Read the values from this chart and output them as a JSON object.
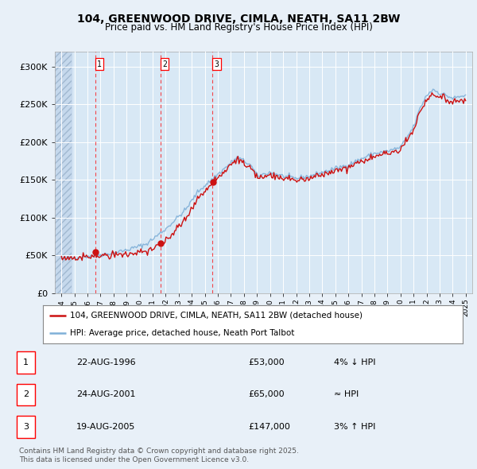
{
  "title1": "104, GREENWOOD DRIVE, CIMLA, NEATH, SA11 2BW",
  "title2": "Price paid vs. HM Land Registry's House Price Index (HPI)",
  "bg_color": "#e8f0f8",
  "plot_bg": "#d8e8f5",
  "red_line_label": "104, GREENWOOD DRIVE, CIMLA, NEATH, SA11 2BW (detached house)",
  "blue_line_label": "HPI: Average price, detached house, Neath Port Talbot",
  "sale_dates": [
    "22-AUG-1996",
    "24-AUG-2001",
    "19-AUG-2005"
  ],
  "sale_prices": [
    53000,
    65000,
    147000
  ],
  "sale_labels": [
    "1",
    "2",
    "3"
  ],
  "sale_hpi_diff": [
    "4% ↓ HPI",
    "≈ HPI",
    "3% ↑ HPI"
  ],
  "footer1": "Contains HM Land Registry data © Crown copyright and database right 2025.",
  "footer2": "This data is licensed under the Open Government Licence v3.0.",
  "ylim": [
    0,
    320000
  ],
  "yticks": [
    0,
    50000,
    100000,
    150000,
    200000,
    250000,
    300000
  ],
  "ytick_labels": [
    "£0",
    "£50K",
    "£100K",
    "£150K",
    "£200K",
    "£250K",
    "£300K"
  ],
  "xstart_year": 1994,
  "xend_year": 2025,
  "hpi_key_points_x": [
    1994.0,
    1995.0,
    1996.0,
    1997.5,
    1999.0,
    2000.5,
    2002.0,
    2003.5,
    2004.5,
    2005.5,
    2006.5,
    2007.5,
    2008.5,
    2009.0,
    2010.0,
    2011.0,
    2012.0,
    2013.0,
    2014.0,
    2015.0,
    2016.0,
    2017.0,
    2018.0,
    2019.0,
    2020.0,
    2021.0,
    2021.5,
    2022.0,
    2022.5,
    2023.0,
    2023.5,
    2024.0,
    2024.5,
    2025.0
  ],
  "hpi_key_points_y": [
    45000,
    47000,
    49000,
    52000,
    57000,
    65000,
    85000,
    110000,
    135000,
    150000,
    165000,
    180000,
    170000,
    155000,
    160000,
    155000,
    152000,
    155000,
    160000,
    165000,
    170000,
    178000,
    185000,
    188000,
    193000,
    220000,
    245000,
    262000,
    270000,
    265000,
    262000,
    258000,
    260000,
    262000
  ]
}
